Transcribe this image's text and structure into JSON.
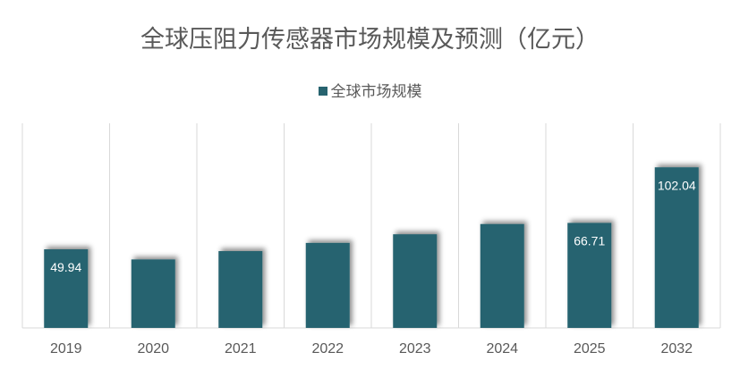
{
  "chart_data": {
    "type": "bar",
    "title": "全球压阻力传感器市场规模及预测（亿元）",
    "categories": [
      "2019",
      "2020",
      "2021",
      "2022",
      "2023",
      "2024",
      "2025",
      "2032"
    ],
    "series": [
      {
        "name": "全球市场规模",
        "values": [
          49.94,
          43.5,
          48.8,
          54.0,
          59.5,
          66.0,
          66.71,
          102.04
        ],
        "data_labels": [
          "49.94",
          "",
          "",
          "",
          "",
          "",
          "66.71",
          "102.04"
        ]
      }
    ],
    "ylim": [
      0,
      130
    ],
    "grid": "vertical-category-separators",
    "legend_position": "top",
    "colors": {
      "bar": "#27636f",
      "grid": "#d9d9d9",
      "text": "#595959"
    }
  }
}
